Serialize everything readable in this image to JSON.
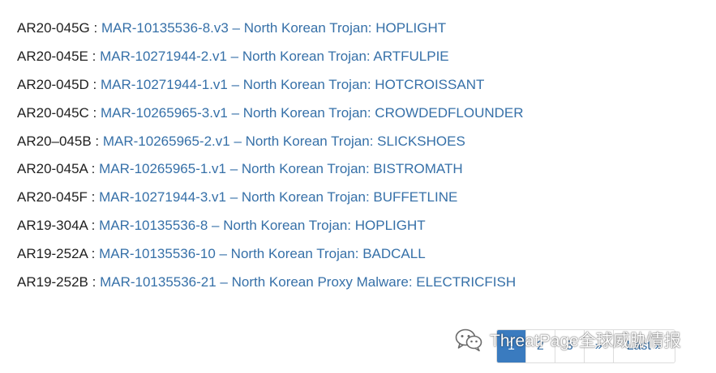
{
  "reports": [
    {
      "id": "AR20-045G",
      "link": "MAR-10135536-8.v3 – North Korean Trojan: HOPLIGHT"
    },
    {
      "id": "AR20-045E",
      "link": "MAR-10271944-2.v1 – North Korean Trojan: ARTFULPIE"
    },
    {
      "id": "AR20-045D",
      "link": "MAR-10271944-1.v1 – North Korean Trojan: HOTCROISSANT"
    },
    {
      "id": "AR20-045C",
      "link": "MAR-10265965-3.v1 – North Korean Trojan: CROWDEDFLOUNDER"
    },
    {
      "id": "AR20–045B",
      "link": "MAR-10265965-2.v1 – North Korean Trojan: SLICKSHOES"
    },
    {
      "id": "AR20-045A",
      "link": "MAR-10265965-1.v1 – North Korean Trojan: BISTROMATH"
    },
    {
      "id": "AR20-045F",
      "link": "MAR-10271944-3.v1 – North Korean Trojan: BUFFETLINE"
    },
    {
      "id": "AR19-304A",
      "link": "MAR-10135536-8 – North Korean Trojan: HOPLIGHT"
    },
    {
      "id": "AR19-252A",
      "link": "MAR-10135536-10 – North Korean Trojan: BADCALL"
    },
    {
      "id": "AR19-252B",
      "link": "MAR-10135536-21 – North Korean Proxy Malware: ELECTRICFISH"
    }
  ],
  "separator": " : ",
  "pagination": {
    "pages": [
      "1",
      "2",
      "3"
    ],
    "next_label": "»",
    "last_label": "Last »",
    "active_page": "1"
  },
  "watermark": {
    "text": "ThreatPage全球威胁情报",
    "icon": "wechat-icon"
  },
  "colors": {
    "link": "#3670a8",
    "text": "#1f1f1f",
    "active_page_bg": "#3a7bbf"
  }
}
